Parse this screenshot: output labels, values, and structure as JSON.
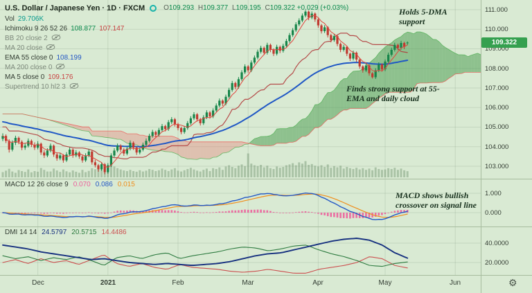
{
  "header": {
    "title": "U.S. Dollar / Japanese Yen · 1D · FXCM",
    "ohlc": {
      "o": "O",
      "ov": "109.293",
      "h": "H",
      "hv": "109.377",
      "l": "L",
      "lv": "109.195",
      "c": "C",
      "cv": "109.322",
      "chg": "+0.029 (+0.03%)"
    },
    "vol": {
      "label": "Vol",
      "value": "29.706K"
    },
    "ichimoku": {
      "label": "Ichimoku 9 26 52 26",
      "v1": "108.877",
      "v2": "107.147"
    },
    "bb": {
      "label": "BB 20 close 2"
    },
    "ma20": {
      "label": "MA 20 close"
    },
    "ema55": {
      "label": "EMA 55 close 0",
      "value": "108.199"
    },
    "ma200": {
      "label": "MA 200 close 0"
    },
    "ma5": {
      "label": "MA 5 close 0",
      "value": "109.176"
    },
    "supertrend": {
      "label": "Supertrend 10 hl2 3"
    }
  },
  "macd_legend": {
    "label": "MACD 12 26 close 9",
    "hist": "0.070",
    "macd": "0.086",
    "signal": "0.015"
  },
  "dmi_legend": {
    "label": "DMI 14 14",
    "adx": "24.5797",
    "plus": "20.5715",
    "minus": "14.4486"
  },
  "annotations": [
    "Holds 5-DMA support",
    "Finds strong support at 55-EMA and daily cloud",
    "MACD shows bullish crossover on signal line"
  ],
  "gear_icon": "⚙",
  "chart_data": {
    "type": "candlestick",
    "title": "U.S. Dollar / Japanese Yen, 1D, FXCM",
    "timeframe": "1D",
    "last_price": 109.322,
    "last_price_label": "109.322",
    "price_axis": {
      "ylim": [
        102.4,
        111.5
      ],
      "values": [
        111,
        110,
        109,
        108,
        107,
        106,
        105,
        104,
        103
      ],
      "labels": [
        "111.000",
        "110.000",
        "109.000",
        "108.000",
        "107.000",
        "106.000",
        "105.000",
        "104.000",
        "103.000"
      ]
    },
    "macd_axis": {
      "labels": [
        "1.000",
        "0.000"
      ]
    },
    "dmi_axis": {
      "labels": [
        "40.0000",
        "20.0000"
      ]
    },
    "time_axis": [
      {
        "label": "Dec",
        "day": 11
      },
      {
        "label": "2021",
        "day": 33
      },
      {
        "label": "Feb",
        "day": 55
      },
      {
        "label": "Mar",
        "day": 77
      },
      {
        "label": "Apr",
        "day": 99
      },
      {
        "label": "May",
        "day": 120
      },
      {
        "label": "Jun",
        "day": 142
      }
    ],
    "colors": {
      "up": "#17854a",
      "down": "#c03a30",
      "volume": "rgba(105,140,105,0.42)",
      "ema55": "#1f57c5",
      "ma5": "#e0453e",
      "kijun": "#b03a3a",
      "span_a": "#4caf50",
      "span_b": "#ef5350",
      "cloud_up": "rgba(80,158,86,0.55)",
      "cloud_down": "rgba(235,100,95,0.30)",
      "macd": "#2357c5",
      "signal": "#ef8e1c",
      "hist": "#ec5f9b",
      "adx": "#16307f",
      "plus_di": "#2c7a3f",
      "minus_di": "#cc4f4f",
      "badge": "#35a04f"
    },
    "candles": [
      [
        104.4,
        104.68,
        104.28,
        104.55
      ],
      [
        104.55,
        104.63,
        104.18,
        104.3
      ],
      [
        104.3,
        104.38,
        103.7,
        103.85
      ],
      [
        103.85,
        104.32,
        103.76,
        104.2
      ],
      [
        104.2,
        104.56,
        104.08,
        104.45
      ],
      [
        104.45,
        104.52,
        104.12,
        104.25
      ],
      [
        104.25,
        104.33,
        103.82,
        103.95
      ],
      [
        103.95,
        104.18,
        103.84,
        104.05
      ],
      [
        104.05,
        104.42,
        103.96,
        104.3
      ],
      [
        104.3,
        104.37,
        103.98,
        104.1
      ],
      [
        104.1,
        104.22,
        103.83,
        103.95
      ],
      [
        103.95,
        104.28,
        103.86,
        104.15
      ],
      [
        104.15,
        104.21,
        103.58,
        103.7
      ],
      [
        103.7,
        103.82,
        103.42,
        103.55
      ],
      [
        103.55,
        103.92,
        103.46,
        103.8
      ],
      [
        103.8,
        104.16,
        103.71,
        104.05
      ],
      [
        104.05,
        104.11,
        103.48,
        103.6
      ],
      [
        103.6,
        103.71,
        103.28,
        103.4
      ],
      [
        103.4,
        103.68,
        103.31,
        103.55
      ],
      [
        103.55,
        103.62,
        103.18,
        103.3
      ],
      [
        103.3,
        103.72,
        103.22,
        103.6
      ],
      [
        103.6,
        103.96,
        103.51,
        103.85
      ],
      [
        103.85,
        103.92,
        103.43,
        103.55
      ],
      [
        103.55,
        103.82,
        103.46,
        103.7
      ],
      [
        103.7,
        103.77,
        103.38,
        103.5
      ],
      [
        103.5,
        103.58,
        103.18,
        103.3
      ],
      [
        103.3,
        103.66,
        103.22,
        103.55
      ],
      [
        103.55,
        103.87,
        103.46,
        103.75
      ],
      [
        103.75,
        103.81,
        103.08,
        103.2
      ],
      [
        103.2,
        103.32,
        102.94,
        103.05
      ],
      [
        103.05,
        103.12,
        102.72,
        102.85
      ],
      [
        102.85,
        103.21,
        102.77,
        103.1
      ],
      [
        103.1,
        103.17,
        102.59,
        102.7
      ],
      [
        102.7,
        103.16,
        102.62,
        103.05
      ],
      [
        103.05,
        103.66,
        102.96,
        103.55
      ],
      [
        103.55,
        103.92,
        103.46,
        103.8
      ],
      [
        103.8,
        104.16,
        103.71,
        104.05
      ],
      [
        104.05,
        104.12,
        103.73,
        103.85
      ],
      [
        103.85,
        103.93,
        103.53,
        103.65
      ],
      [
        103.65,
        104.01,
        103.56,
        103.9
      ],
      [
        103.9,
        104.32,
        103.81,
        104.2
      ],
      [
        104.2,
        104.27,
        103.83,
        103.95
      ],
      [
        103.95,
        104.02,
        103.58,
        103.7
      ],
      [
        103.7,
        103.96,
        103.61,
        103.85
      ],
      [
        103.85,
        104.21,
        103.76,
        104.1
      ],
      [
        104.1,
        104.42,
        104.01,
        104.3
      ],
      [
        104.3,
        104.66,
        104.21,
        104.55
      ],
      [
        104.55,
        104.86,
        104.46,
        104.75
      ],
      [
        104.75,
        104.82,
        104.48,
        104.6
      ],
      [
        104.6,
        104.96,
        104.51,
        104.85
      ],
      [
        104.85,
        105.16,
        104.76,
        105.05
      ],
      [
        105.05,
        105.12,
        104.78,
        104.9
      ],
      [
        104.9,
        105.36,
        104.81,
        105.25
      ],
      [
        105.25,
        105.51,
        105.16,
        105.4
      ],
      [
        105.4,
        105.47,
        105.03,
        105.15
      ],
      [
        105.15,
        105.22,
        104.83,
        104.95
      ],
      [
        104.95,
        105.02,
        104.63,
        104.75
      ],
      [
        104.75,
        105.06,
        104.66,
        104.95
      ],
      [
        104.95,
        105.31,
        104.86,
        105.2
      ],
      [
        105.2,
        105.56,
        105.11,
        105.45
      ],
      [
        105.45,
        105.76,
        105.36,
        105.65
      ],
      [
        105.65,
        105.72,
        105.28,
        105.4
      ],
      [
        105.4,
        105.47,
        105.08,
        105.2
      ],
      [
        105.2,
        105.61,
        105.11,
        105.5
      ],
      [
        105.5,
        105.86,
        105.41,
        105.75
      ],
      [
        105.75,
        105.82,
        105.43,
        105.55
      ],
      [
        105.55,
        105.96,
        105.46,
        105.85
      ],
      [
        105.85,
        106.21,
        105.76,
        106.1
      ],
      [
        106.1,
        106.46,
        106.01,
        106.35
      ],
      [
        106.35,
        106.42,
        106.08,
        106.2
      ],
      [
        106.2,
        106.66,
        106.11,
        106.55
      ],
      [
        106.55,
        107.01,
        106.46,
        106.9
      ],
      [
        106.9,
        107.36,
        106.81,
        107.25
      ],
      [
        107.25,
        107.32,
        106.93,
        107.05
      ],
      [
        107.05,
        107.56,
        106.96,
        107.45
      ],
      [
        107.45,
        107.91,
        107.36,
        107.8
      ],
      [
        107.8,
        108.21,
        107.71,
        108.1
      ],
      [
        108.1,
        108.17,
        107.78,
        107.9
      ],
      [
        107.9,
        108.41,
        107.81,
        108.3
      ],
      [
        108.3,
        108.66,
        108.21,
        108.55
      ],
      [
        108.55,
        108.96,
        108.46,
        108.85
      ],
      [
        108.85,
        109.16,
        108.76,
        109.05
      ],
      [
        109.05,
        109.12,
        108.68,
        108.8
      ],
      [
        108.8,
        109.31,
        108.71,
        109.2
      ],
      [
        109.2,
        109.27,
        108.83,
        108.95
      ],
      [
        108.95,
        109.02,
        108.63,
        108.75
      ],
      [
        108.75,
        109.21,
        108.66,
        109.1
      ],
      [
        109.1,
        109.17,
        108.78,
        108.9
      ],
      [
        108.9,
        109.26,
        108.81,
        109.15
      ],
      [
        109.15,
        109.51,
        109.06,
        109.4
      ],
      [
        109.4,
        109.81,
        109.31,
        109.7
      ],
      [
        109.7,
        110.06,
        109.61,
        109.95
      ],
      [
        109.95,
        110.36,
        109.86,
        110.25
      ],
      [
        110.25,
        110.56,
        110.16,
        110.45
      ],
      [
        110.45,
        110.81,
        110.36,
        110.7
      ],
      [
        110.7,
        110.97,
        110.61,
        110.9
      ],
      [
        110.9,
        110.96,
        110.46,
        110.6
      ],
      [
        110.6,
        110.91,
        110.51,
        110.8
      ],
      [
        110.8,
        110.86,
        110.38,
        110.5
      ],
      [
        110.5,
        110.57,
        110.08,
        110.2
      ],
      [
        110.2,
        110.27,
        109.78,
        109.9
      ],
      [
        109.9,
        110.21,
        109.81,
        110.1
      ],
      [
        110.1,
        110.16,
        109.58,
        109.7
      ],
      [
        109.7,
        109.77,
        109.33,
        109.45
      ],
      [
        109.45,
        109.76,
        109.36,
        109.65
      ],
      [
        109.65,
        109.71,
        109.13,
        109.25
      ],
      [
        109.25,
        109.32,
        108.83,
        108.95
      ],
      [
        108.95,
        109.21,
        108.86,
        109.1
      ],
      [
        109.1,
        109.16,
        108.63,
        108.75
      ],
      [
        108.75,
        108.81,
        108.38,
        108.5
      ],
      [
        108.5,
        108.91,
        108.41,
        108.8
      ],
      [
        108.8,
        108.86,
        108.33,
        108.45
      ],
      [
        108.45,
        108.52,
        107.98,
        108.1
      ],
      [
        108.1,
        108.16,
        107.78,
        107.9
      ],
      [
        107.9,
        108.26,
        107.81,
        108.15
      ],
      [
        108.15,
        108.21,
        107.63,
        107.75
      ],
      [
        107.75,
        107.81,
        107.48,
        107.55
      ],
      [
        107.55,
        108.01,
        107.46,
        107.9
      ],
      [
        107.9,
        108.31,
        107.81,
        108.2
      ],
      [
        108.2,
        108.26,
        107.83,
        107.95
      ],
      [
        107.95,
        108.46,
        107.86,
        108.35
      ],
      [
        108.35,
        108.81,
        108.26,
        108.7
      ],
      [
        108.7,
        109.06,
        108.61,
        108.95
      ],
      [
        108.95,
        109.31,
        108.86,
        109.2
      ],
      [
        109.2,
        109.27,
        108.93,
        109.05
      ],
      [
        109.05,
        109.41,
        108.96,
        109.3
      ],
      [
        109.3,
        109.36,
        108.98,
        109.1
      ],
      [
        109.293,
        109.377,
        109.195,
        109.322
      ]
    ],
    "volume": [
      25,
      32,
      41,
      28,
      22,
      35,
      30,
      26,
      38,
      24,
      30,
      27,
      45,
      36,
      28,
      28,
      42,
      33,
      26,
      38,
      29,
      24,
      33,
      27,
      22,
      36,
      25,
      31,
      44,
      39,
      48,
      42,
      58,
      46,
      70,
      52,
      44,
      38,
      33,
      30,
      36,
      30,
      27,
      34,
      28,
      32,
      40,
      36,
      30,
      34,
      42,
      36,
      30,
      38,
      44,
      32,
      28,
      34,
      40,
      46,
      38,
      32,
      28,
      36,
      42,
      30,
      44,
      40,
      48,
      36,
      52,
      58,
      50,
      44,
      56,
      62,
      54,
      115,
      66,
      58,
      54,
      60,
      48,
      56,
      44,
      40,
      52,
      46,
      50,
      58,
      62,
      68,
      58,
      72,
      66,
      78,
      60,
      64,
      56,
      52,
      58,
      50,
      62,
      46,
      54,
      48,
      56,
      42,
      50,
      44,
      40,
      46,
      38,
      44,
      36,
      42,
      34,
      48,
      40,
      36,
      38,
      44,
      40,
      46,
      36,
      42,
      34,
      29.7
    ],
    "dmi": {
      "adx": [
        38,
        36,
        34,
        31,
        29,
        27,
        25,
        23,
        24,
        22,
        20,
        19,
        18,
        19,
        18,
        17,
        18,
        19,
        21,
        24,
        27,
        29,
        30,
        33,
        36,
        39,
        42,
        44,
        45,
        43,
        38,
        30,
        24.6
      ],
      "plus": [
        27,
        24,
        26,
        22,
        25,
        23,
        26,
        22,
        17,
        25,
        27,
        24,
        28,
        30,
        24,
        27,
        29,
        31,
        34,
        36,
        35,
        32,
        34,
        37,
        38,
        33,
        29,
        26,
        22,
        17,
        16,
        19,
        20.6
      ],
      "minus": [
        20,
        23,
        19,
        24,
        20,
        22,
        18,
        23,
        28,
        19,
        16,
        19,
        15,
        13,
        18,
        15,
        14,
        13,
        11,
        10,
        11,
        13,
        11,
        9,
        9,
        13,
        15,
        17,
        20,
        26,
        24,
        17,
        14.4
      ]
    }
  }
}
